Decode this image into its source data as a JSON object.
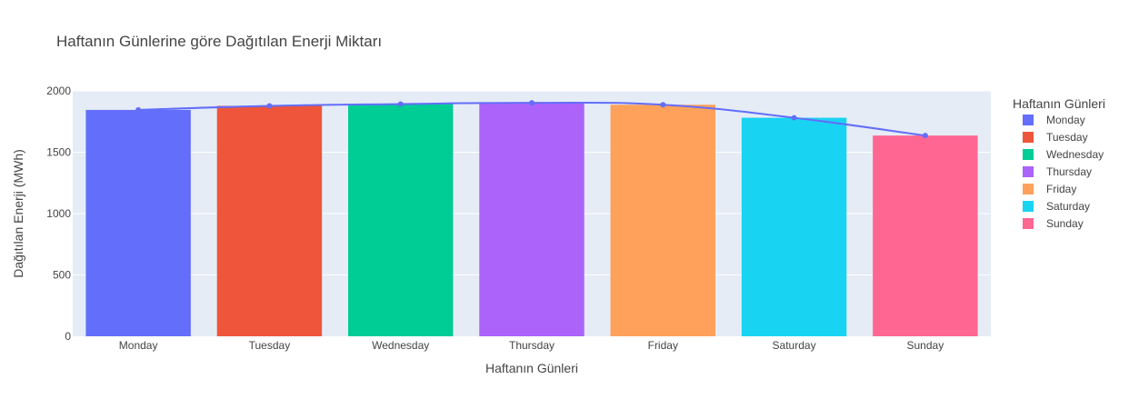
{
  "chart_data": {
    "type": "bar",
    "title": "Haftanın Günlerine göre Dağıtılan Enerji Miktarı",
    "xlabel": "Haftanın Günleri",
    "ylabel": "Dağıtılan Enerji (MWh)",
    "categories": [
      "Monday",
      "Tuesday",
      "Wednesday",
      "Thursday",
      "Friday",
      "Saturday",
      "Sunday"
    ],
    "values": [
      1845,
      1878,
      1893,
      1903,
      1887,
      1781,
      1636
    ],
    "colors": [
      "#636efa",
      "#EF553B",
      "#00cc96",
      "#ab63fa",
      "#FFA15A",
      "#19d3f3",
      "#FF6692"
    ],
    "line_overlay": {
      "type": "line+markers",
      "values": [
        1845,
        1878,
        1893,
        1903,
        1887,
        1781,
        1636
      ],
      "color": "#636efa"
    },
    "ylim": [
      0,
      2000
    ],
    "yticks": [
      0,
      500,
      1000,
      1500,
      2000
    ],
    "ytick_labels": [
      "0",
      "500",
      "1000",
      "1500",
      "2000"
    ],
    "grid": true,
    "plot_background": "#e5ecf6",
    "legend": {
      "title": "Haftanın Günleri",
      "placement": "right",
      "entries": [
        "Monday",
        "Tuesday",
        "Wednesday",
        "Thursday",
        "Friday",
        "Saturday",
        "Sunday"
      ]
    }
  }
}
